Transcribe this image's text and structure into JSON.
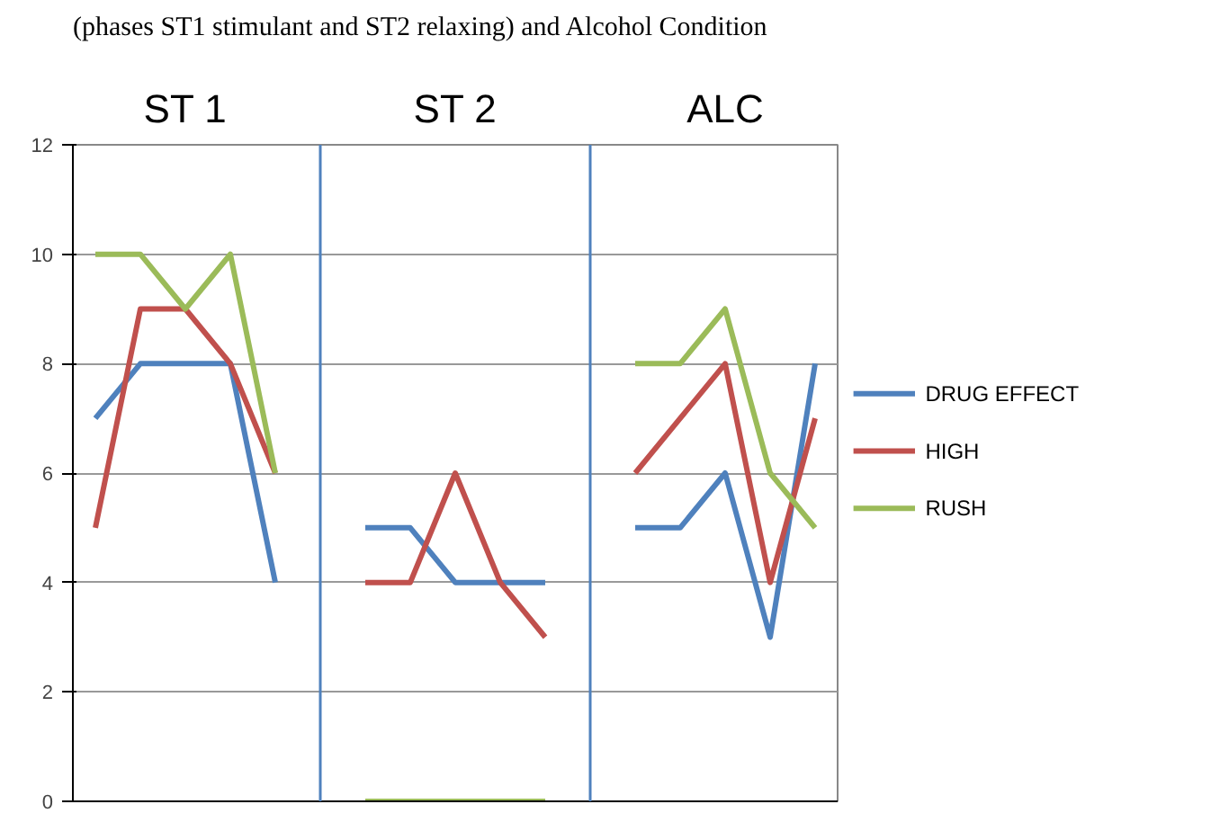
{
  "chart_data": {
    "type": "line",
    "title": "(phases ST1 stimulant and ST2 relaxing) and Alcohol Condition",
    "categories": [
      null,
      null,
      null,
      null,
      null,
      null,
      null,
      null,
      null,
      null,
      null,
      null,
      null,
      null,
      null,
      null,
      null
    ],
    "series": [
      {
        "name": "DRUG EFFECT",
        "color": "#4f81bd",
        "values": [
          7,
          8,
          8,
          8,
          4,
          null,
          5,
          5,
          4,
          4,
          4,
          null,
          5,
          5,
          6,
          3,
          8
        ]
      },
      {
        "name": "HIGH",
        "color": "#c0504d",
        "values": [
          5,
          9,
          9,
          8,
          6,
          null,
          4,
          4,
          6,
          4,
          3,
          null,
          6,
          7,
          8,
          4,
          7
        ]
      },
      {
        "name": "RUSH",
        "color": "#9bbb59",
        "values": [
          10,
          10,
          9,
          10,
          6,
          null,
          0,
          0,
          0,
          0,
          0,
          null,
          8,
          8,
          9,
          6,
          5
        ]
      }
    ],
    "annotations": [
      "ST 1",
      "ST 2",
      "ALC"
    ],
    "ylim": [
      0,
      12
    ],
    "yticks": [
      0,
      2,
      4,
      6,
      8,
      10,
      12
    ],
    "grid": "y",
    "legend": "right",
    "tick_labels": "y",
    "marker": "none",
    "line_style": "solid"
  }
}
